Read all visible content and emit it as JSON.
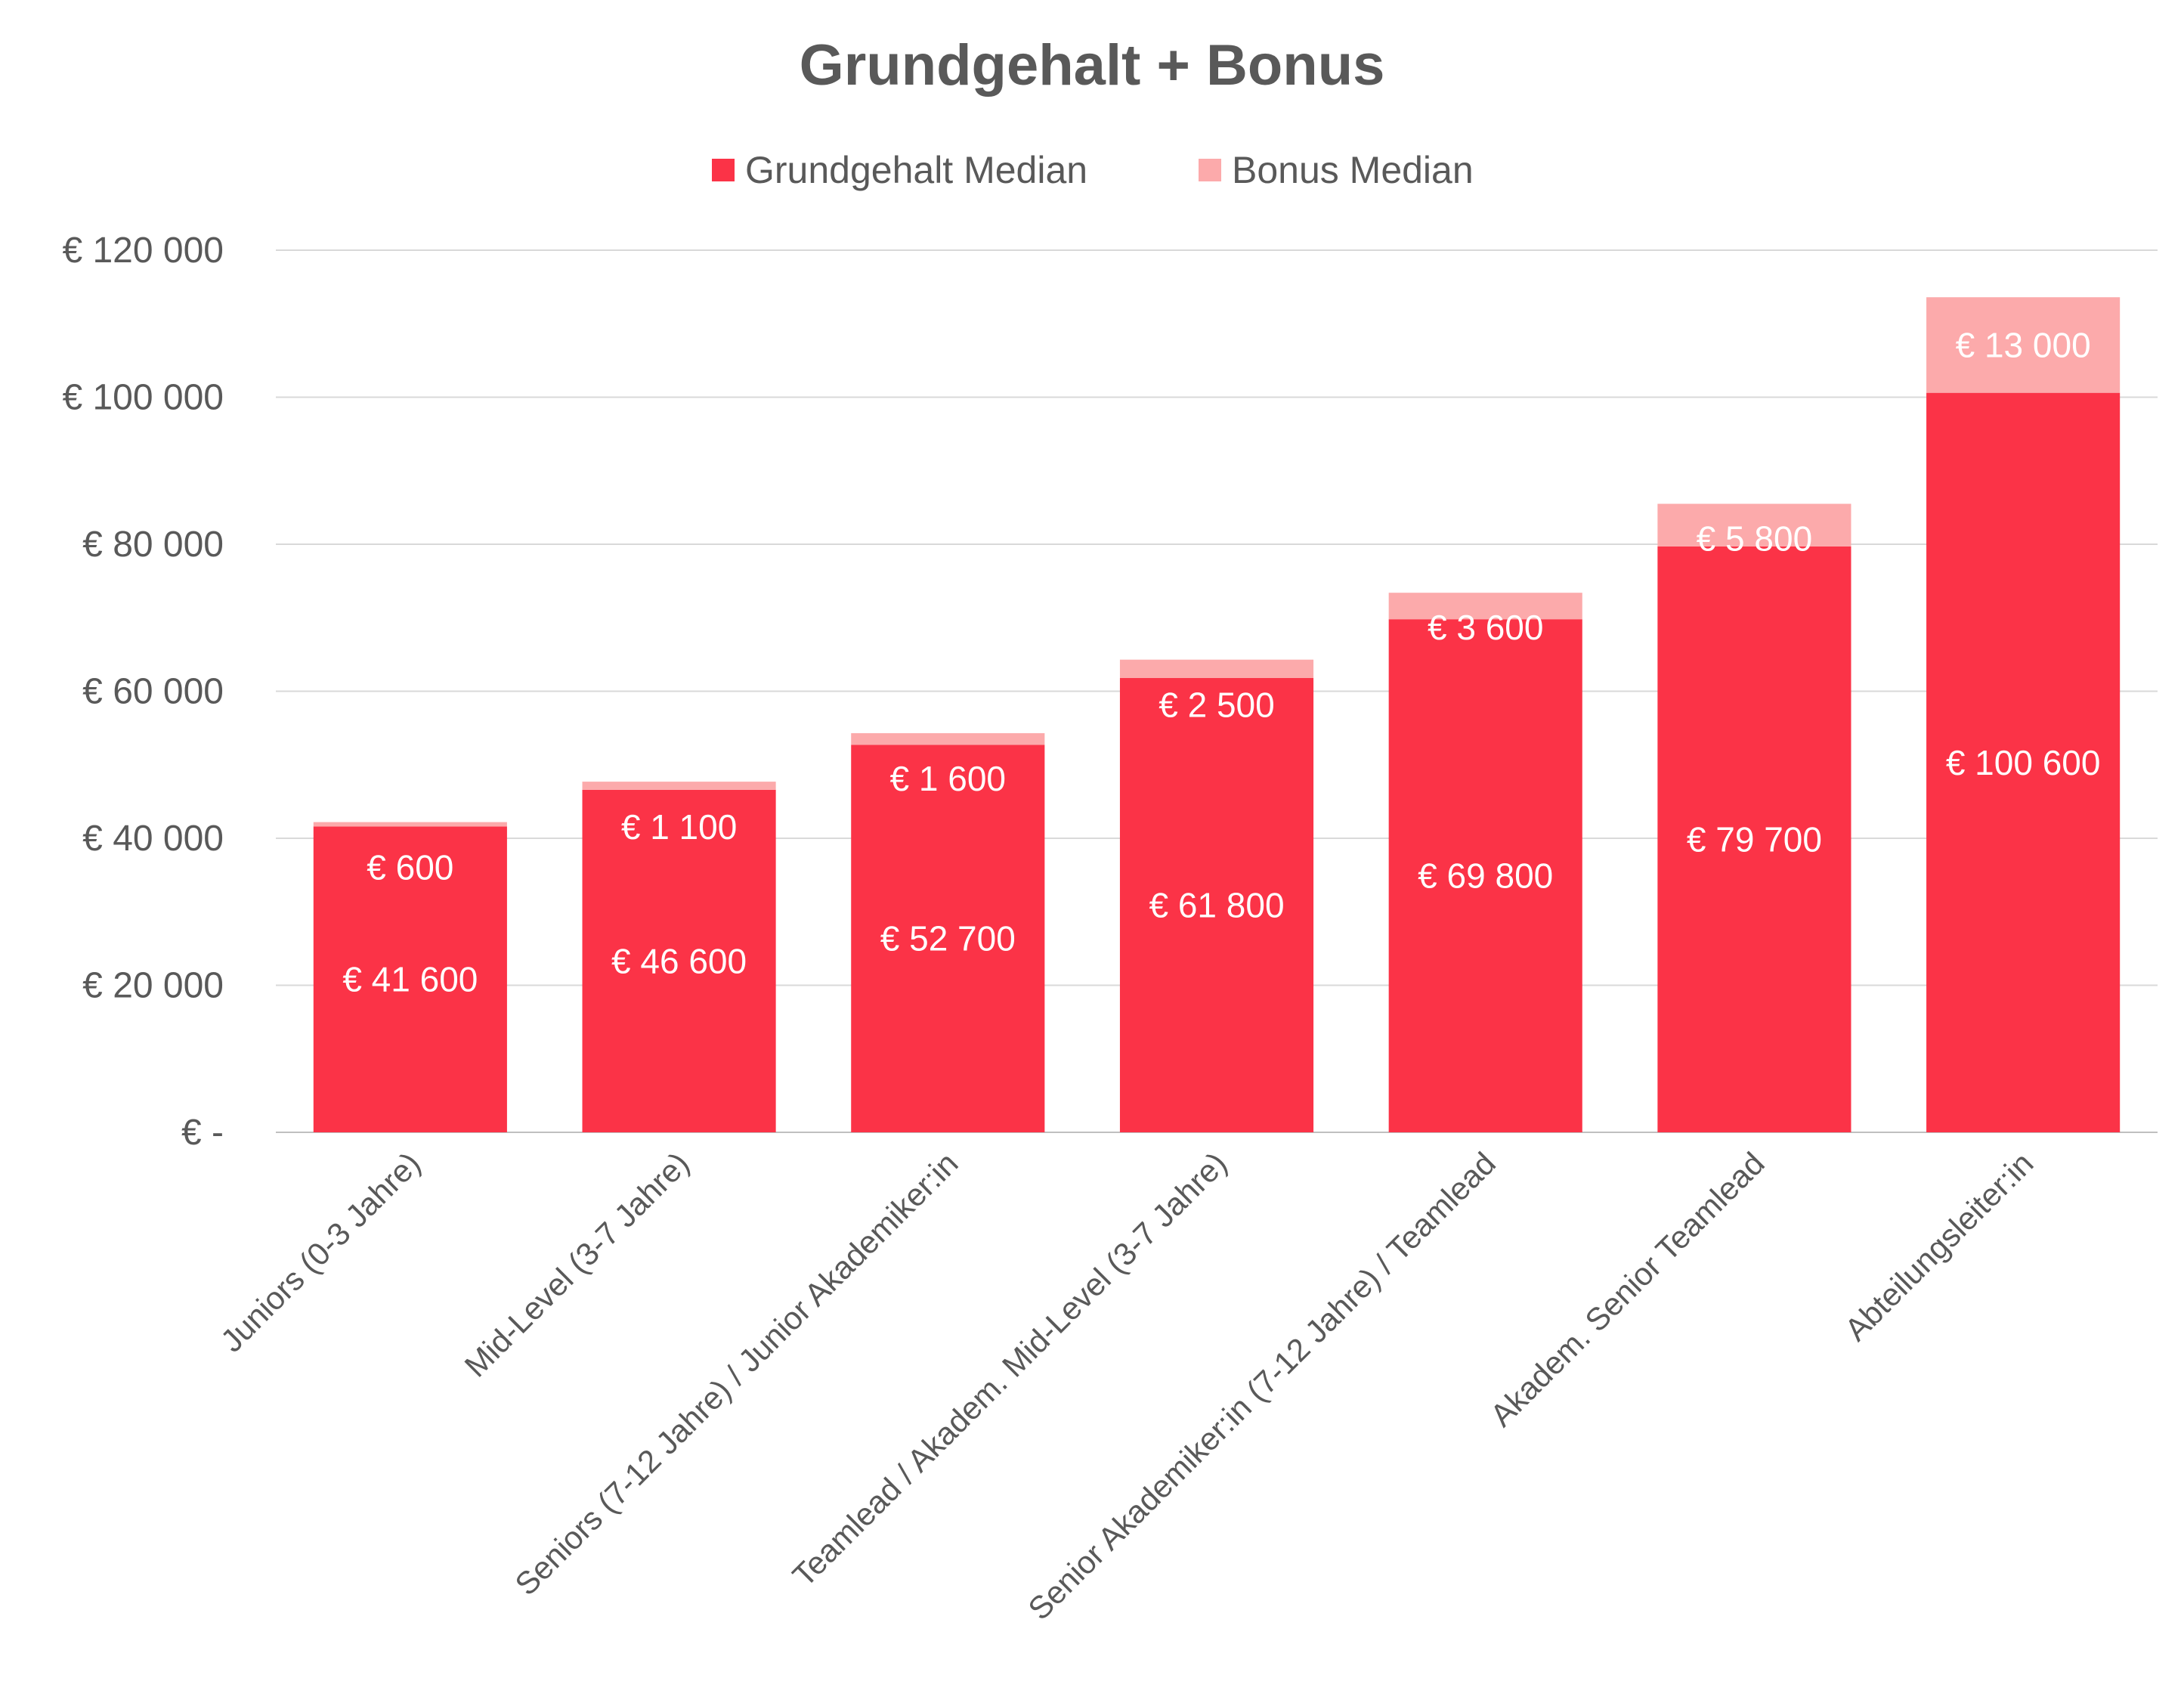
{
  "chart_data": {
    "type": "bar",
    "stacked": true,
    "title": "Grundgehalt + Bonus",
    "xlabel": "",
    "ylabel": "",
    "ylim": [
      0,
      120000
    ],
    "yticks": [
      0,
      20000,
      40000,
      60000,
      80000,
      100000,
      120000
    ],
    "ytick_labels": [
      "€ -",
      "€ 20 000",
      "€ 40 000",
      "€ 60 000",
      "€ 80 000",
      "€ 100 000",
      "€ 120 000"
    ],
    "grid": true,
    "legend_position": "top",
    "categories": [
      "Juniors (0-3 Jahre)",
      "Mid-Level (3-7 Jahre)",
      "Seniors (7-12 Jahre) / Junior Akademiker:in",
      "Teamlead / Akadem. Mid-Level (3-7 Jahre)",
      "Senior Akademiker:in (7-12 Jahre) / Teamlead",
      "Akadem. Senior Teamlead",
      "Abteilungsleiter:in"
    ],
    "series": [
      {
        "name": "Grundgehalt Median",
        "color": "#fb3347",
        "values": [
          41600,
          46600,
          52700,
          61800,
          69800,
          79700,
          100600
        ],
        "labels": [
          "€ 41 600",
          "€ 46 600",
          "€ 52 700",
          "€ 61 800",
          "€ 69 800",
          "€ 79 700",
          "€ 100 600"
        ]
      },
      {
        "name": "Bonus Median",
        "color": "#fcaaab",
        "values": [
          600,
          1100,
          1600,
          2500,
          3600,
          5800,
          13000
        ],
        "labels": [
          "€  600",
          "€ 1 100",
          "€ 1 600",
          "€ 2 500",
          "€ 3 600",
          "€ 5 800",
          "€ 13 000"
        ]
      }
    ]
  }
}
